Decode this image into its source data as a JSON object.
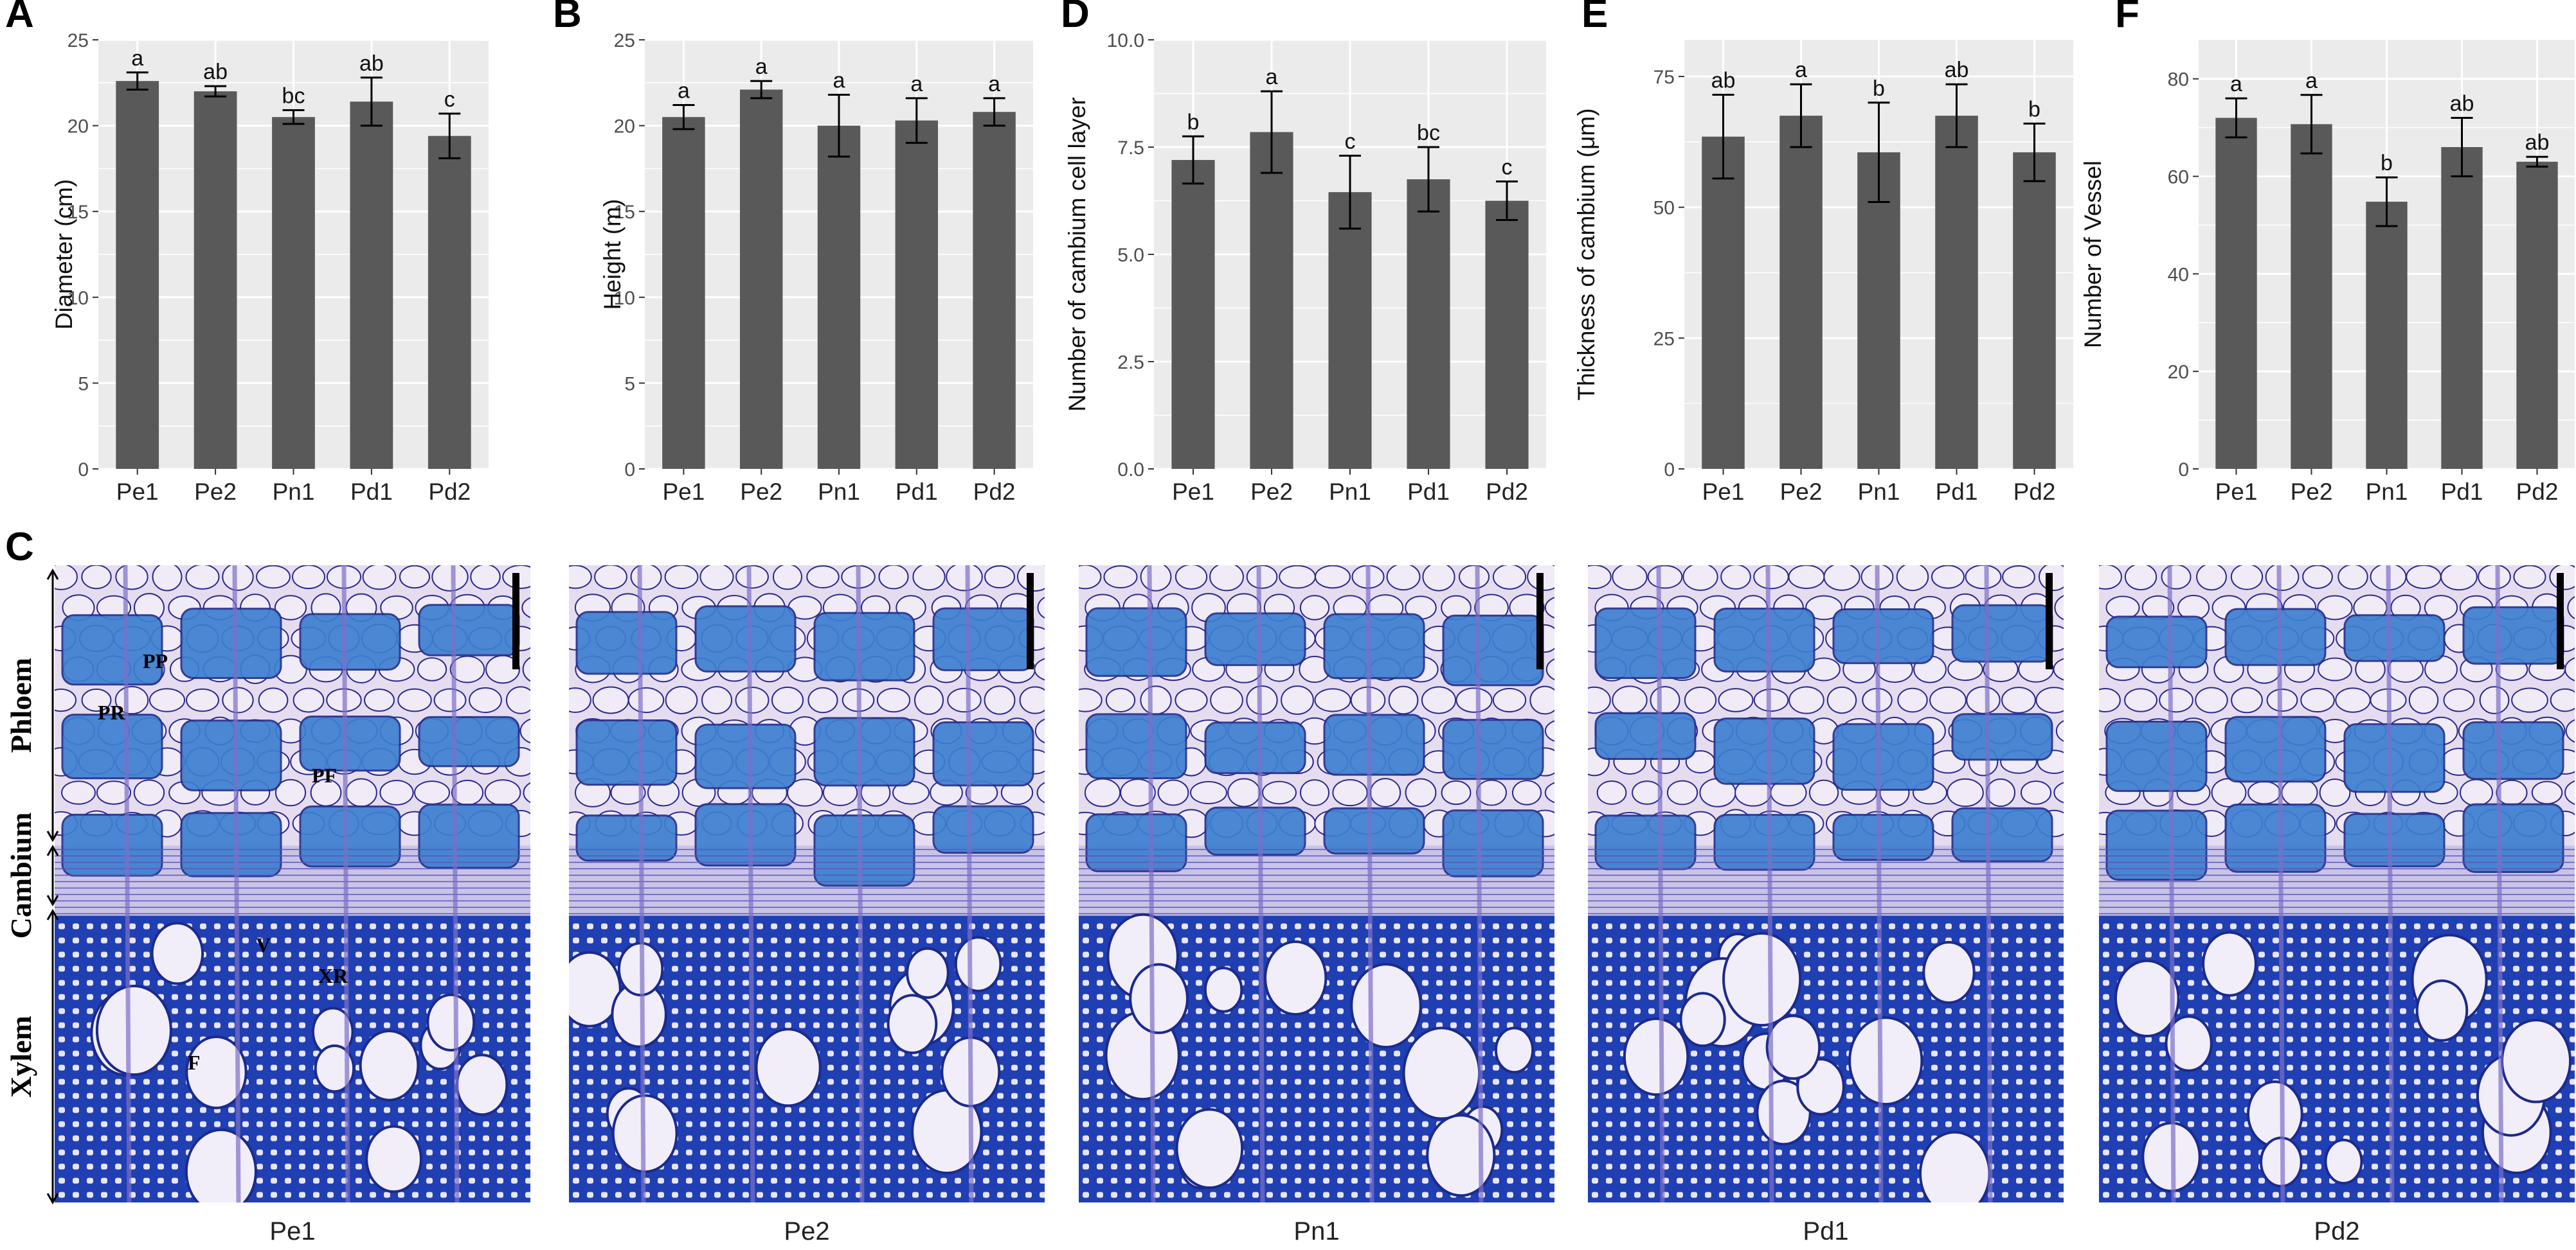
{
  "colors": {
    "panel_bg": "#ebebeb",
    "grid": "#ffffff",
    "bar": "#595959",
    "error_bar": "#000000",
    "tissue_light": "#e6dcef",
    "tissue_blue": "#3d7fd0",
    "tissue_dark": "#1f3fb3",
    "cell_wall": "#2a2a8f"
  },
  "chart_data": [
    {
      "panel": "A",
      "type": "bar",
      "categories": [
        "Pe1",
        "Pe2",
        "Pn1",
        "Pd1",
        "Pd2"
      ],
      "values": [
        22.6,
        22.0,
        20.5,
        21.4,
        19.4
      ],
      "errors": [
        0.5,
        0.3,
        0.4,
        1.4,
        1.3
      ],
      "significance": [
        "a",
        "ab",
        "bc",
        "ab",
        "c"
      ],
      "ylabel": "Diameter (cm)",
      "ylim": [
        0,
        25
      ],
      "yticks": [
        0,
        5,
        10,
        15,
        20,
        25
      ],
      "ytick_labels": [
        "0",
        "5",
        "10",
        "15",
        "20",
        "25"
      ],
      "grid": true
    },
    {
      "panel": "B",
      "type": "bar",
      "categories": [
        "Pe1",
        "Pe2",
        "Pn1",
        "Pd1",
        "Pd2"
      ],
      "values": [
        20.5,
        22.1,
        20.0,
        20.3,
        20.8
      ],
      "errors": [
        0.7,
        0.5,
        1.8,
        1.3,
        0.8
      ],
      "significance": [
        "a",
        "a",
        "a",
        "a",
        "a"
      ],
      "ylabel": "Height (m)",
      "ylim": [
        0,
        25
      ],
      "yticks": [
        0,
        5,
        10,
        15,
        20,
        25
      ],
      "ytick_labels": [
        "0",
        "5",
        "10",
        "15",
        "20",
        "25"
      ],
      "grid": true
    },
    {
      "panel": "D",
      "type": "bar",
      "categories": [
        "Pe1",
        "Pe2",
        "Pn1",
        "Pd1",
        "Pd2"
      ],
      "values": [
        7.2,
        7.85,
        6.45,
        6.75,
        6.25
      ],
      "errors": [
        0.55,
        0.95,
        0.85,
        0.75,
        0.45
      ],
      "significance": [
        "b",
        "a",
        "c",
        "bc",
        "c"
      ],
      "ylabel": "Number of cambium cell layer",
      "ylim": [
        0,
        10
      ],
      "yticks": [
        0,
        2.5,
        5,
        7.5,
        10
      ],
      "ytick_labels": [
        "0.0",
        "2.5",
        "5.0",
        "7.5",
        "10.0"
      ],
      "grid": true
    },
    {
      "panel": "E",
      "type": "bar",
      "categories": [
        "Pe1",
        "Pe2",
        "Pn1",
        "Pd1",
        "Pd2"
      ],
      "values": [
        63.5,
        67.5,
        60.5,
        67.5,
        60.5
      ],
      "errors": [
        8.0,
        6.0,
        9.5,
        6.0,
        5.5
      ],
      "significance": [
        "ab",
        "a",
        "b",
        "ab",
        "b"
      ],
      "ylabel": "Thickness of cambium (μm)",
      "ylim": [
        0,
        82
      ],
      "yticks": [
        0,
        25,
        50,
        75
      ],
      "ytick_labels": [
        "0",
        "25",
        "50",
        "75"
      ],
      "grid": true
    },
    {
      "panel": "F",
      "type": "bar",
      "categories": [
        "Pe1",
        "Pe2",
        "Pn1",
        "Pd1",
        "Pd2"
      ],
      "values": [
        72.0,
        70.7,
        54.8,
        66.0,
        63.0
      ],
      "errors": [
        4.0,
        6.0,
        5.0,
        6.0,
        1.0
      ],
      "significance": [
        "a",
        "a",
        "b",
        "ab",
        "ab"
      ],
      "ylabel": "Number of Vessel",
      "ylim": [
        0,
        88
      ],
      "yticks": [
        0,
        20,
        40,
        60,
        80
      ],
      "ytick_labels": [
        "0",
        "20",
        "40",
        "60",
        "80"
      ],
      "grid": true
    }
  ],
  "micrographs": {
    "panel_label": "C",
    "captions": [
      "Pe1",
      "Pe2",
      "Pn1",
      "Pd1",
      "Pd2"
    ],
    "regions": [
      "Phloem",
      "Cambium",
      "Xylem"
    ],
    "annotations": [
      "PP",
      "PR",
      "PF",
      "V",
      "XR",
      "F"
    ]
  }
}
